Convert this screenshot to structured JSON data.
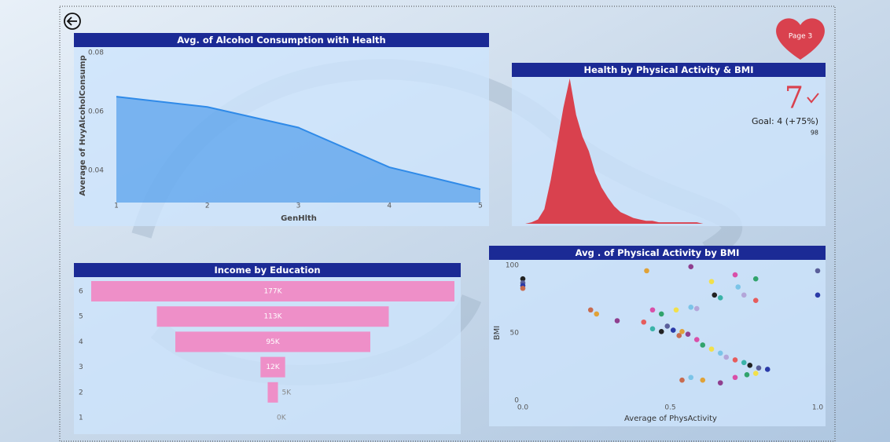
{
  "nav": {
    "page_button": "Page 3"
  },
  "chart_data": [
    {
      "type": "area",
      "title": "Avg. of Alcohol Consumption with Health",
      "x": [
        1,
        2,
        3,
        4,
        5
      ],
      "values": [
        0.065,
        0.0615,
        0.0545,
        0.041,
        0.0335
      ],
      "xlim": [
        1,
        5
      ],
      "xticks": [
        1,
        2,
        3,
        4,
        5
      ],
      "ylim": [
        0.029,
        0.08
      ],
      "yticks": [
        0.04,
        0.06,
        0.08
      ],
      "xlabel": "GenHlth",
      "ylabel": "Average of HvyAlcoholConsump",
      "color": "#2f8ae8"
    },
    {
      "type": "kpi-area",
      "title": "Health by Physical Activity & BMI",
      "values": [
        0,
        0,
        1,
        3,
        10,
        30,
        55,
        80,
        100,
        75,
        60,
        50,
        35,
        25,
        18,
        12,
        8,
        6,
        4,
        3,
        2,
        2,
        1,
        1,
        1,
        1,
        1,
        1,
        1,
        0,
        0,
        0,
        0,
        0,
        0,
        0,
        0,
        0,
        0,
        0,
        0,
        0,
        0,
        0,
        0,
        0,
        0,
        0
      ],
      "color": "#d9414e",
      "kpi_value": 7,
      "goal": "Goal: 4 (+75%)",
      "kpi_max": 98
    },
    {
      "type": "funnel",
      "title": "Income by Education",
      "categories": [
        "6",
        "5",
        "4",
        "3",
        "2",
        "1"
      ],
      "values": [
        177000,
        113000,
        95000,
        12000,
        5000,
        0
      ],
      "value_labels": [
        "177K",
        "113K",
        "95K",
        "12K",
        "5K",
        "0K"
      ],
      "color": "#ee8fc8"
    },
    {
      "type": "scatter",
      "title": "Avg . of Physical Activity by BMI",
      "x": [
        0,
        0,
        0,
        0,
        0.42,
        0.57,
        0.72,
        0.79,
        0.64,
        0.73,
        0.75,
        0.79,
        0.67,
        0.65,
        1.0,
        1.0,
        0.23,
        0.25,
        0.32,
        0.44,
        0.47,
        0.52,
        0.57,
        0.59,
        0.41,
        0.44,
        0.47,
        0.49,
        0.51,
        0.53,
        0.54,
        0.56,
        0.59,
        0.61,
        0.64,
        0.67,
        0.69,
        0.72,
        0.75,
        0.77,
        0.8,
        0.83,
        0.54,
        0.61,
        0.67,
        0.72,
        0.76,
        0.79,
        0.57
      ],
      "values": [
        90,
        87,
        85,
        83,
        96,
        99,
        93,
        90,
        88,
        84,
        78,
        74,
        76,
        78,
        96,
        78,
        67,
        64,
        59,
        67,
        64,
        67,
        69,
        68,
        58,
        53,
        51,
        55,
        52,
        48,
        51,
        49,
        45,
        41,
        38,
        35,
        32,
        30,
        28,
        26,
        24,
        23,
        15,
        15,
        13,
        17,
        19,
        20,
        17
      ],
      "xlim": [
        0,
        1
      ],
      "xticks": [
        {
          "value": 0,
          "label": "0.0"
        },
        {
          "value": 0.5,
          "label": "0.5"
        },
        {
          "value": 1,
          "label": "1.0"
        }
      ],
      "ylim": [
        0,
        100
      ],
      "yticks": [
        0,
        50,
        100
      ],
      "xlabel": "Average of PhysActivity",
      "ylabel": "BMI",
      "palette": [
        "#222222",
        "#5a5f9a",
        "#2a3aa8",
        "#c86b4f",
        "#e0a238",
        "#8f3f8f",
        "#d94fa8",
        "#31a36c",
        "#f2e04a",
        "#7bc4e8",
        "#b3a6d9",
        "#e65c5c",
        "#3bb3a8"
      ]
    }
  ]
}
